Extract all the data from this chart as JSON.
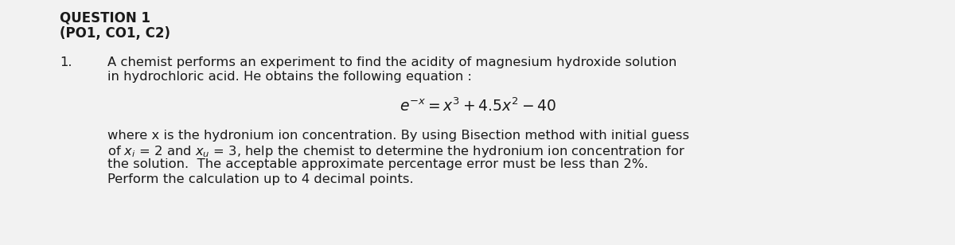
{
  "bg_color": "#f2f2f2",
  "text_color": "#1a1a1a",
  "title_line1": "QUESTION 1",
  "title_line2": "(PO1, CO1, C2)",
  "item_number": "1.",
  "para1_line1": "A chemist performs an experiment to find the acidity of magnesium hydroxide solution",
  "para1_line2": "in hydrochloric acid. He obtains the following equation :",
  "equation": "$e^{-x} = x^3 + 4.5x^2 - 40$",
  "para2_line1": "where x is the hydronium ion concentration. By using Bisection method with initial guess",
  "para2_line2": "of $x_i$ = 2 and $x_u$ = 3, help the chemist to determine the hydronium ion concentration for",
  "para2_line3": "the solution.  The acceptable approximate percentage error must be less than 2%.",
  "para2_line4": "Perform the calculation up to 4 decimal points.",
  "fig_width": 12.0,
  "fig_height": 3.08,
  "dpi": 100,
  "lm_title": 75,
  "lm_num": 75,
  "lm_para": 135,
  "lm_para2": 135,
  "title_fs": 12,
  "body_fs": 11.8,
  "eq_fs": 13.5
}
